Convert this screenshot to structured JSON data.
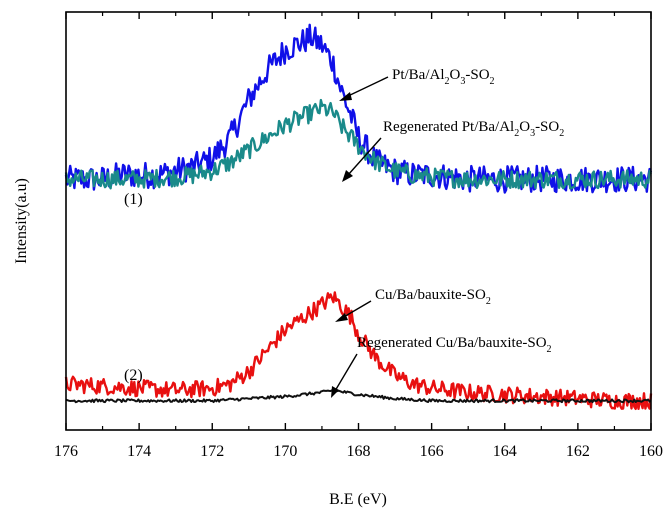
{
  "chart_data": {
    "type": "line",
    "xlabel": "B.E (eV)",
    "ylabel": "Intensity(a.u)",
    "xlim": [
      176,
      160
    ],
    "x_reversed": true,
    "xticks": [
      176,
      174,
      172,
      170,
      168,
      166,
      164,
      162,
      160
    ],
    "yticks_shown": false,
    "grid": false,
    "legend": "none",
    "group_markers": [
      "(1)",
      "(2)"
    ],
    "annotations": [
      {
        "base": "Pt/Ba/Al",
        "s1": "2",
        "mid": "O",
        "s2": "3",
        "tail": "-SO",
        "s3": "2",
        "series": 0
      },
      {
        "base": "Regenerated Pt/Ba/Al",
        "s1": "2",
        "mid": "O",
        "s2": "3",
        "tail": "-SO",
        "s3": "2",
        "series": 1
      },
      {
        "base": "Cu/Ba/bauxite-SO",
        "s1": "2",
        "series": 2
      },
      {
        "base": "Regenerated Cu/Ba/bauxite-SO",
        "s1": "2",
        "series": 3
      }
    ],
    "series": [
      {
        "color": "#1010e8",
        "x": [
          176,
          175,
          174.5,
          174,
          173.5,
          173,
          172.5,
          172,
          171.5,
          171,
          170.5,
          170,
          169.5,
          169.3,
          169,
          168.7,
          168.5,
          168.2,
          168,
          167.5,
          167,
          166.5,
          166,
          165,
          164,
          163,
          162,
          161,
          160
        ],
        "y": [
          60,
          60,
          61,
          61,
          61,
          62,
          63,
          65,
          70,
          79,
          86,
          91,
          93,
          94,
          92,
          88,
          82,
          75,
          70,
          64,
          62,
          61,
          61,
          60,
          60,
          60,
          60,
          60,
          60
        ]
      },
      {
        "color": "#1a8a8a",
        "x": [
          176,
          175,
          174,
          173,
          172.5,
          172,
          171.5,
          171,
          170.5,
          170,
          169.5,
          169,
          168.7,
          168.5,
          168,
          167.5,
          167,
          166.5,
          166,
          165,
          164,
          163,
          162,
          161,
          160
        ],
        "y": [
          60,
          60,
          60,
          60.5,
          61,
          62,
          64,
          67,
          70,
          73,
          75,
          77,
          76,
          73,
          68,
          64,
          62,
          61,
          60.5,
          60,
          60,
          60,
          60,
          60,
          60
        ]
      },
      {
        "color": "#e81010",
        "x": [
          176,
          175,
          174,
          173,
          172,
          171.5,
          171,
          170.5,
          170,
          169.5,
          169,
          168.7,
          168.5,
          168.2,
          168,
          167.5,
          167,
          166.5,
          166,
          165,
          164,
          163,
          162,
          161,
          160
        ],
        "y": [
          11,
          10.5,
          10,
          9.5,
          10,
          11,
          14,
          19,
          24,
          27,
          30,
          32,
          30,
          27,
          23,
          17,
          13,
          11,
          10,
          9,
          8.5,
          8,
          7.5,
          7,
          7
        ]
      },
      {
        "color": "#101010",
        "x": [
          176,
          174,
          172,
          171,
          170,
          169,
          168.7,
          168,
          167,
          166,
          164,
          162,
          160
        ],
        "y": [
          7,
          7,
          7,
          7.5,
          8,
          9,
          9.5,
          8.5,
          7.5,
          7,
          7,
          7,
          7
        ]
      }
    ]
  }
}
